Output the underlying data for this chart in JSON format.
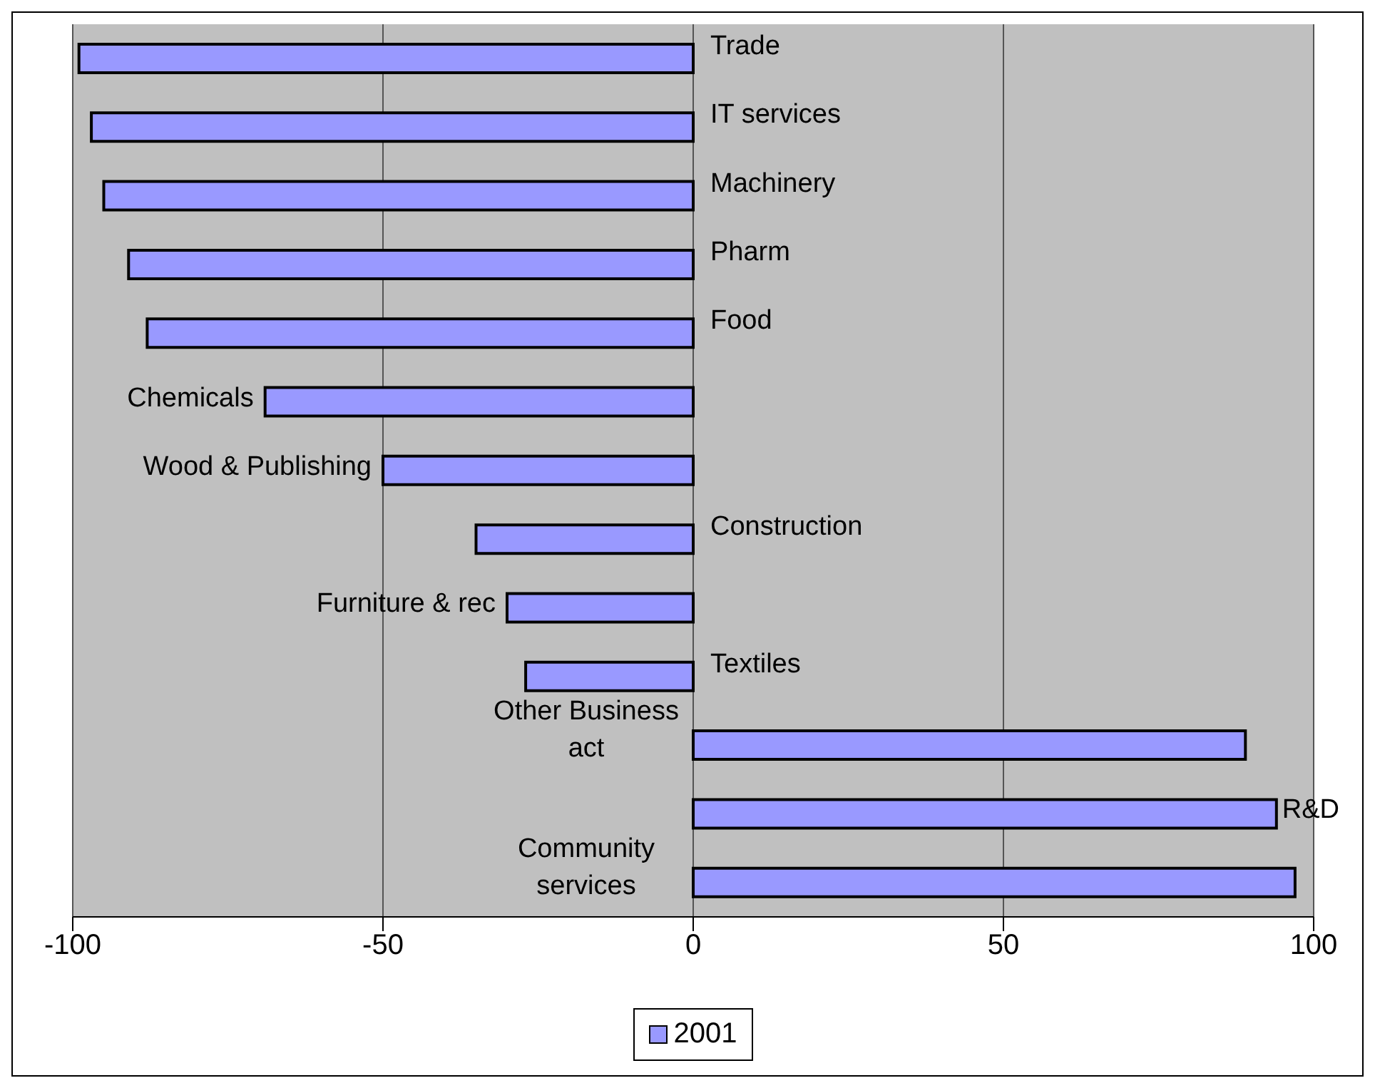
{
  "chart_data": {
    "type": "bar",
    "orientation": "horizontal",
    "categories": [
      "Trade",
      "IT services",
      "Machinery",
      "Pharm",
      "Food",
      "Chemicals",
      "Wood & Publishing",
      "Construction",
      "Furniture & rec",
      "Textiles",
      "Other Business act",
      "R&D",
      "Community services"
    ],
    "series": [
      {
        "name": "2001",
        "color": "#9999ff",
        "values": [
          -99,
          -97,
          -95,
          -91,
          -88,
          -69,
          -50,
          -35,
          -30,
          -27,
          89,
          94,
          97
        ]
      }
    ],
    "xlim": [
      -100,
      100
    ],
    "xticks": [
      -100,
      -50,
      0,
      50,
      100
    ],
    "grid": "x",
    "legend": "bottom",
    "tick_labels": "x"
  }
}
